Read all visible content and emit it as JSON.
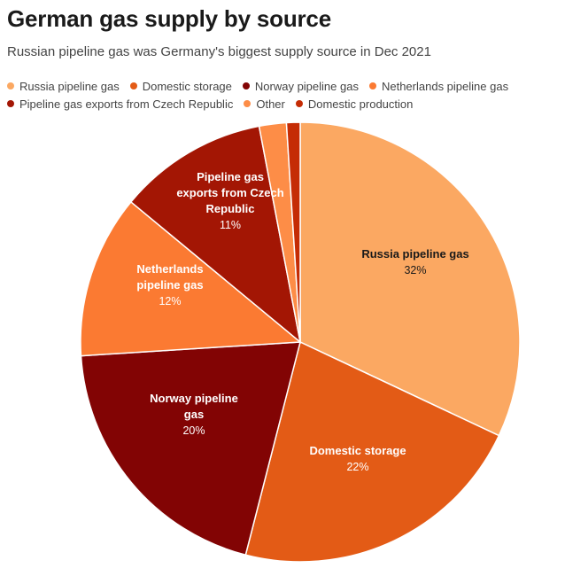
{
  "title": "German gas supply by source",
  "subtitle": "Russian pipeline gas was Germany's biggest supply source in Dec 2021",
  "chart_data": {
    "type": "pie",
    "title": "German gas supply by source",
    "subtitle": "Russian pipeline gas was Germany's biggest supply source in Dec 2021",
    "legend_position": "top",
    "slices": [
      {
        "name": "Russia pipeline gas",
        "value": 32,
        "label": "32%",
        "color": "#fba862",
        "label_lines": [
          "Russia pipeline gas"
        ],
        "text_color": "#1a1a1a"
      },
      {
        "name": "Domestic storage",
        "value": 22,
        "label": "22%",
        "color": "#e35b16",
        "label_lines": [
          "Domestic storage"
        ],
        "text_color": "#ffffff"
      },
      {
        "name": "Norway pipeline gas",
        "value": 20,
        "label": "20%",
        "color": "#820404",
        "label_lines": [
          "Norway pipeline",
          "gas"
        ],
        "text_color": "#ffffff"
      },
      {
        "name": "Netherlands pipeline gas",
        "value": 12,
        "label": "12%",
        "color": "#fb7a32",
        "label_lines": [
          "Netherlands",
          "pipeline gas"
        ],
        "text_color": "#ffffff"
      },
      {
        "name": "Pipeline gas exports from Czech Republic",
        "value": 11,
        "label": "11%",
        "color": "#a31604",
        "label_lines": [
          "Pipeline gas",
          "exports from Czech",
          "Republic"
        ],
        "text_color": "#ffffff"
      },
      {
        "name": "Other",
        "value": 2,
        "label": "",
        "color": "#fd8d47",
        "label_lines": [],
        "text_color": "#ffffff"
      },
      {
        "name": "Domestic production",
        "value": 1,
        "label": "",
        "color": "#c52c05",
        "label_lines": [],
        "text_color": "#ffffff"
      }
    ]
  }
}
